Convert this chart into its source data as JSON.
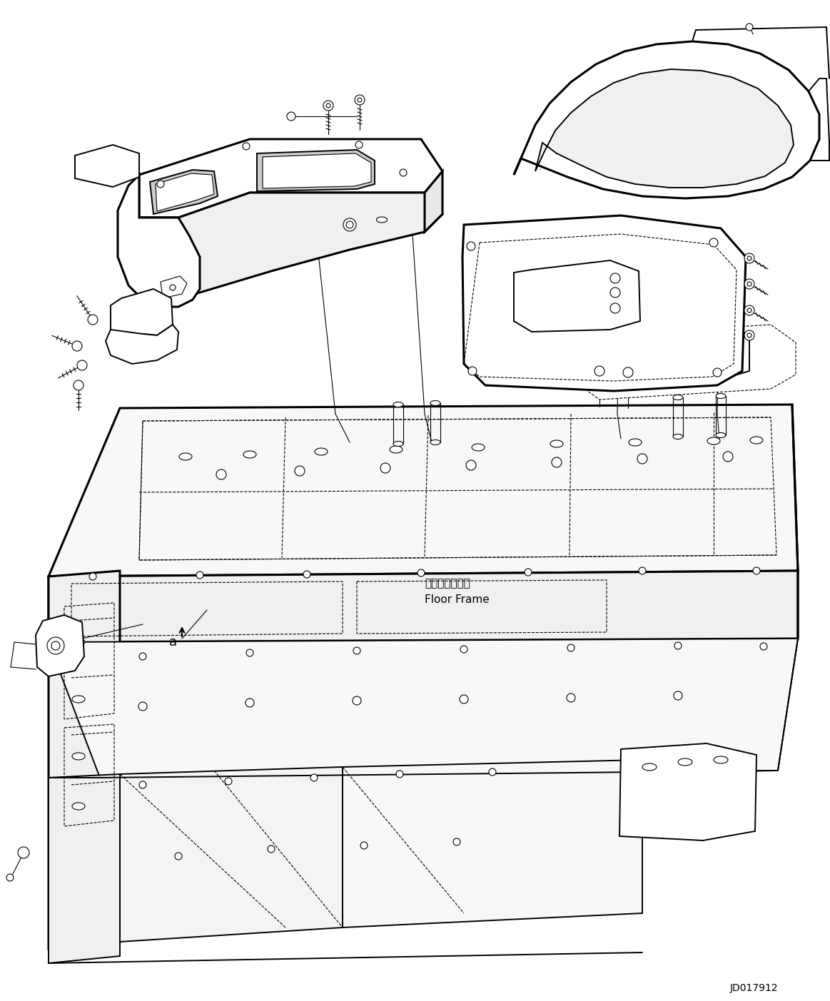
{
  "doc_number": "JD017912",
  "floor_frame_label_jp": "フロアフレーム",
  "floor_frame_label_en": "Floor Frame",
  "background_color": "#ffffff",
  "line_color": "#000000",
  "fig_width": 11.63,
  "fig_height": 14.03,
  "dpi": 100
}
